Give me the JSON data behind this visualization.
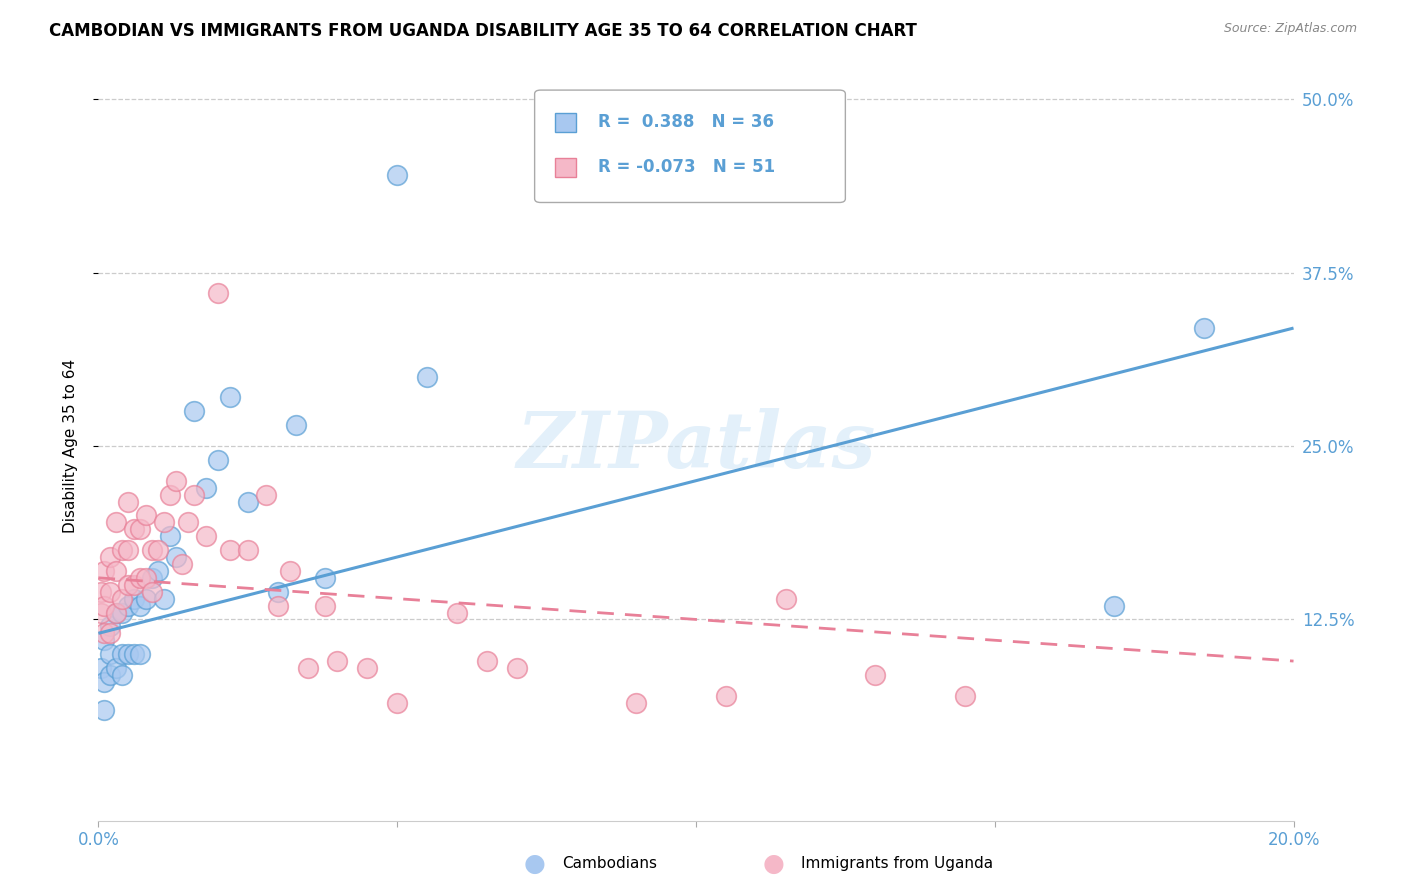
{
  "title": "CAMBODIAN VS IMMIGRANTS FROM UGANDA DISABILITY AGE 35 TO 64 CORRELATION CHART",
  "source": "Source: ZipAtlas.com",
  "ylabel": "Disability Age 35 to 64",
  "ytick_labels": [
    "12.5%",
    "25.0%",
    "37.5%",
    "50.0%"
  ],
  "ytick_values": [
    0.125,
    0.25,
    0.375,
    0.5
  ],
  "xlim": [
    0.0,
    0.2
  ],
  "ylim": [
    -0.02,
    0.52
  ],
  "color_cambodian": "#a8c8f0",
  "color_uganda": "#f5b8c8",
  "trendline_cambodian": "#5a9fd4",
  "trendline_uganda": "#e88098",
  "cambodian_x": [
    0.0005,
    0.001,
    0.001,
    0.001,
    0.002,
    0.002,
    0.002,
    0.003,
    0.003,
    0.004,
    0.004,
    0.004,
    0.005,
    0.005,
    0.006,
    0.006,
    0.007,
    0.007,
    0.008,
    0.009,
    0.01,
    0.011,
    0.012,
    0.013,
    0.016,
    0.018,
    0.02,
    0.022,
    0.025,
    0.03,
    0.033,
    0.038,
    0.05,
    0.055,
    0.17,
    0.185
  ],
  "cambodian_y": [
    0.09,
    0.08,
    0.11,
    0.06,
    0.1,
    0.12,
    0.085,
    0.09,
    0.13,
    0.1,
    0.13,
    0.085,
    0.1,
    0.135,
    0.1,
    0.14,
    0.1,
    0.135,
    0.14,
    0.155,
    0.16,
    0.14,
    0.185,
    0.17,
    0.275,
    0.22,
    0.24,
    0.285,
    0.21,
    0.145,
    0.265,
    0.155,
    0.445,
    0.3,
    0.135,
    0.335
  ],
  "uganda_x": [
    0.0004,
    0.0005,
    0.001,
    0.001,
    0.001,
    0.002,
    0.002,
    0.002,
    0.003,
    0.003,
    0.003,
    0.004,
    0.004,
    0.005,
    0.005,
    0.005,
    0.006,
    0.006,
    0.007,
    0.007,
    0.008,
    0.008,
    0.009,
    0.009,
    0.01,
    0.011,
    0.012,
    0.013,
    0.014,
    0.015,
    0.016,
    0.018,
    0.02,
    0.022,
    0.025,
    0.028,
    0.03,
    0.032,
    0.035,
    0.038,
    0.04,
    0.045,
    0.05,
    0.06,
    0.065,
    0.07,
    0.09,
    0.105,
    0.115,
    0.13,
    0.145
  ],
  "uganda_y": [
    0.13,
    0.145,
    0.115,
    0.135,
    0.16,
    0.115,
    0.145,
    0.17,
    0.13,
    0.16,
    0.195,
    0.14,
    0.175,
    0.15,
    0.175,
    0.21,
    0.15,
    0.19,
    0.155,
    0.19,
    0.155,
    0.2,
    0.145,
    0.175,
    0.175,
    0.195,
    0.215,
    0.225,
    0.165,
    0.195,
    0.215,
    0.185,
    0.36,
    0.175,
    0.175,
    0.215,
    0.135,
    0.16,
    0.09,
    0.135,
    0.095,
    0.09,
    0.065,
    0.13,
    0.095,
    0.09,
    0.065,
    0.07,
    0.14,
    0.085,
    0.07
  ],
  "cam_trend_x0": 0.0,
  "cam_trend_y0": 0.115,
  "cam_trend_x1": 0.2,
  "cam_trend_y1": 0.335,
  "uga_trend_x0": 0.0,
  "uga_trend_y0": 0.155,
  "uga_trend_x1": 0.2,
  "uga_trend_y1": 0.095,
  "watermark": "ZIPatlas",
  "title_fontsize": 12,
  "axis_label_fontsize": 11,
  "tick_fontsize": 12
}
